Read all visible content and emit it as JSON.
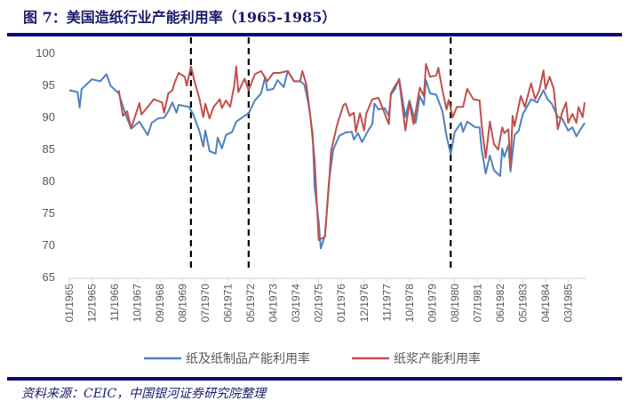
{
  "header": {
    "title": "图 7：美国造纸行业产能利用率（1965-1985）"
  },
  "footer": {
    "source": "资料来源：CEIC，中国银河证券研究院整理"
  },
  "chart_data": {
    "type": "line",
    "title": "",
    "xlabel": "",
    "ylabel": "",
    "ylim": [
      65,
      100
    ],
    "yticks": [
      65,
      70,
      75,
      80,
      85,
      90,
      95,
      100
    ],
    "xrange": [
      "1965-01",
      "1985-11"
    ],
    "xtick_labels": [
      "01/1965",
      "12/1965",
      "11/1966",
      "10/1967",
      "09/1968",
      "08/1969",
      "07/1970",
      "06/1971",
      "05/1972",
      "04/1973",
      "03/1974",
      "02/1975",
      "01/1976",
      "12/1976",
      "11/1977",
      "10/1978",
      "09/1979",
      "08/1980",
      "07/1981",
      "06/1982",
      "05/1983",
      "04/1984",
      "03/1985"
    ],
    "grid": false,
    "legend": "bottom",
    "vertical_markers": [
      "1969-12",
      "1972-04",
      "1980-06"
    ],
    "series": [
      {
        "name": "纸及纸制品产能利用率",
        "color": "#4f81bd",
        "points": [
          [
            "1965-01",
            94.1
          ],
          [
            "1965-05",
            93.8
          ],
          [
            "1965-06",
            91.4
          ],
          [
            "1965-07",
            94.3
          ],
          [
            "1965-12",
            95.8
          ],
          [
            "1966-04",
            95.5
          ],
          [
            "1966-07",
            96.6
          ],
          [
            "1966-09",
            94.8
          ],
          [
            "1967-01",
            93.6
          ],
          [
            "1967-04",
            90.6
          ],
          [
            "1967-07",
            88.1
          ],
          [
            "1967-11",
            89.2
          ],
          [
            "1968-03",
            87.1
          ],
          [
            "1968-05",
            89.0
          ],
          [
            "1968-08",
            89.7
          ],
          [
            "1968-11",
            89.8
          ],
          [
            "1969-01",
            90.8
          ],
          [
            "1969-03",
            92.2
          ],
          [
            "1969-05",
            90.6
          ],
          [
            "1969-06",
            91.8
          ],
          [
            "1969-11",
            91.5
          ],
          [
            "1970-01",
            90.4
          ],
          [
            "1970-04",
            87.8
          ],
          [
            "1970-06",
            85.3
          ],
          [
            "1970-07",
            87.8
          ],
          [
            "1970-09",
            84.6
          ],
          [
            "1970-12",
            84.2
          ],
          [
            "1971-01",
            86.7
          ],
          [
            "1971-03",
            85.0
          ],
          [
            "1971-05",
            87.1
          ],
          [
            "1971-08",
            87.6
          ],
          [
            "1971-10",
            89.2
          ],
          [
            "1972-02",
            90.1
          ],
          [
            "1972-04",
            90.5
          ],
          [
            "1972-07",
            92.5
          ],
          [
            "1972-10",
            93.6
          ],
          [
            "1972-12",
            96.2
          ],
          [
            "1973-01",
            94.1
          ],
          [
            "1973-04",
            94.3
          ],
          [
            "1973-06",
            95.7
          ],
          [
            "1973-09",
            94.6
          ],
          [
            "1973-11",
            97.1
          ],
          [
            "1974-02",
            95.5
          ],
          [
            "1974-05",
            95.5
          ],
          [
            "1974-07",
            95.0
          ],
          [
            "1974-09",
            92.0
          ],
          [
            "1974-11",
            87.4
          ],
          [
            "1974-12",
            79.0
          ],
          [
            "1975-02",
            73.5
          ],
          [
            "1975-03",
            69.4
          ],
          [
            "1975-05",
            71.4
          ],
          [
            "1975-07",
            80.0
          ],
          [
            "1975-09",
            84.8
          ],
          [
            "1975-12",
            87.0
          ],
          [
            "1976-03",
            87.5
          ],
          [
            "1976-06",
            87.6
          ],
          [
            "1976-07",
            86.4
          ],
          [
            "1976-09",
            87.4
          ],
          [
            "1976-11",
            86.0
          ],
          [
            "1977-02",
            87.8
          ],
          [
            "1977-04",
            88.8
          ],
          [
            "1977-05",
            92.0
          ],
          [
            "1977-07",
            91.1
          ],
          [
            "1977-10",
            91.3
          ],
          [
            "1977-12",
            90.1
          ],
          [
            "1978-01",
            93.4
          ],
          [
            "1978-03",
            94.3
          ],
          [
            "1978-05",
            95.9
          ],
          [
            "1978-08",
            89.9
          ],
          [
            "1978-10",
            92.5
          ],
          [
            "1979-01",
            89.0
          ],
          [
            "1979-03",
            93.2
          ],
          [
            "1979-05",
            91.8
          ],
          [
            "1979-06",
            95.7
          ],
          [
            "1979-08",
            93.6
          ],
          [
            "1979-11",
            93.4
          ],
          [
            "1980-02",
            90.8
          ],
          [
            "1980-04",
            86.9
          ],
          [
            "1980-06",
            84.1
          ],
          [
            "1980-08",
            87.6
          ],
          [
            "1980-11",
            89.0
          ],
          [
            "1980-12",
            87.6
          ],
          [
            "1981-02",
            89.2
          ],
          [
            "1981-06",
            88.3
          ],
          [
            "1981-08",
            88.3
          ],
          [
            "1981-09",
            84.9
          ],
          [
            "1981-11",
            81.1
          ],
          [
            "1982-01",
            83.9
          ],
          [
            "1982-03",
            81.6
          ],
          [
            "1982-06",
            80.7
          ],
          [
            "1982-07",
            85.0
          ],
          [
            "1982-08",
            83.7
          ],
          [
            "1982-10",
            85.5
          ],
          [
            "1982-11",
            81.4
          ],
          [
            "1983-01",
            87.1
          ],
          [
            "1983-03",
            87.8
          ],
          [
            "1983-05",
            90.4
          ],
          [
            "1983-07",
            91.5
          ],
          [
            "1983-09",
            92.7
          ],
          [
            "1983-12",
            92.2
          ],
          [
            "1984-03",
            94.1
          ],
          [
            "1984-05",
            92.7
          ],
          [
            "1984-07",
            92.0
          ],
          [
            "1984-10",
            89.9
          ],
          [
            "1984-12",
            89.7
          ],
          [
            "1985-03",
            87.8
          ],
          [
            "1985-05",
            88.3
          ],
          [
            "1985-07",
            86.9
          ],
          [
            "1985-09",
            88.0
          ],
          [
            "1985-11",
            89.0
          ]
        ]
      },
      {
        "name": "纸浆产能利用率",
        "color": "#c0504d",
        "points": [
          [
            "1967-01",
            94.1
          ],
          [
            "1967-03",
            90.1
          ],
          [
            "1967-05",
            90.8
          ],
          [
            "1967-07",
            88.2
          ],
          [
            "1967-09",
            90.1
          ],
          [
            "1967-11",
            92.1
          ],
          [
            "1967-12",
            90.3
          ],
          [
            "1968-03",
            91.5
          ],
          [
            "1968-06",
            92.7
          ],
          [
            "1968-10",
            92.2
          ],
          [
            "1968-11",
            90.6
          ],
          [
            "1969-01",
            93.6
          ],
          [
            "1969-03",
            94.1
          ],
          [
            "1969-04",
            95.2
          ],
          [
            "1969-06",
            96.8
          ],
          [
            "1969-09",
            96.2
          ],
          [
            "1969-10",
            94.8
          ],
          [
            "1969-12",
            97.8
          ],
          [
            "1970-02",
            95.2
          ],
          [
            "1970-04",
            92.9
          ],
          [
            "1970-06",
            89.9
          ],
          [
            "1970-07",
            92.0
          ],
          [
            "1970-09",
            89.7
          ],
          [
            "1970-11",
            91.5
          ],
          [
            "1971-02",
            92.7
          ],
          [
            "1971-03",
            91.3
          ],
          [
            "1971-05",
            92.5
          ],
          [
            "1971-07",
            91.5
          ],
          [
            "1971-09",
            94.8
          ],
          [
            "1971-10",
            97.8
          ],
          [
            "1971-11",
            93.8
          ],
          [
            "1972-02",
            95.9
          ],
          [
            "1972-04",
            94.1
          ],
          [
            "1972-07",
            96.6
          ],
          [
            "1972-10",
            97.1
          ],
          [
            "1973-01",
            95.5
          ],
          [
            "1973-04",
            96.8
          ],
          [
            "1973-07",
            96.8
          ],
          [
            "1973-11",
            97.1
          ],
          [
            "1974-02",
            95.5
          ],
          [
            "1974-05",
            95.5
          ],
          [
            "1974-06",
            97.1
          ],
          [
            "1974-08",
            95.0
          ],
          [
            "1974-10",
            89.9
          ],
          [
            "1974-12",
            83.2
          ],
          [
            "1975-02",
            70.7
          ],
          [
            "1975-05",
            71.2
          ],
          [
            "1975-07",
            79.5
          ],
          [
            "1975-08",
            84.6
          ],
          [
            "1975-11",
            88.8
          ],
          [
            "1976-02",
            91.8
          ],
          [
            "1976-03",
            92.0
          ],
          [
            "1976-05",
            90.1
          ],
          [
            "1976-07",
            90.6
          ],
          [
            "1976-08",
            87.6
          ],
          [
            "1976-10",
            90.5
          ],
          [
            "1976-12",
            87.8
          ],
          [
            "1977-01",
            90.4
          ],
          [
            "1977-04",
            92.7
          ],
          [
            "1977-07",
            92.9
          ],
          [
            "1977-09",
            91.3
          ],
          [
            "1977-12",
            88.8
          ],
          [
            "1978-01",
            93.6
          ],
          [
            "1978-03",
            94.8
          ],
          [
            "1978-05",
            95.7
          ],
          [
            "1978-08",
            87.8
          ],
          [
            "1978-10",
            92.2
          ],
          [
            "1978-12",
            88.8
          ],
          [
            "1979-03",
            94.5
          ],
          [
            "1979-05",
            93.2
          ],
          [
            "1979-06",
            98.2
          ],
          [
            "1979-08",
            96.2
          ],
          [
            "1979-11",
            96.4
          ],
          [
            "1979-12",
            97.6
          ],
          [
            "1980-02",
            94.1
          ],
          [
            "1980-04",
            91.1
          ],
          [
            "1980-05",
            92.6
          ],
          [
            "1980-07",
            89.9
          ],
          [
            "1980-09",
            91.5
          ],
          [
            "1980-12",
            91.5
          ],
          [
            "1981-02",
            94.3
          ],
          [
            "1981-05",
            92.7
          ],
          [
            "1981-08",
            92.5
          ],
          [
            "1981-09",
            88.8
          ],
          [
            "1981-11",
            83.5
          ],
          [
            "1982-01",
            89.2
          ],
          [
            "1982-03",
            85.7
          ],
          [
            "1982-05",
            84.8
          ],
          [
            "1982-07",
            88.3
          ],
          [
            "1982-08",
            87.4
          ],
          [
            "1982-10",
            88.0
          ],
          [
            "1982-11",
            82.1
          ],
          [
            "1982-12",
            90.1
          ],
          [
            "1983-01",
            88.5
          ],
          [
            "1983-04",
            93.2
          ],
          [
            "1983-06",
            91.5
          ],
          [
            "1983-09",
            95.2
          ],
          [
            "1983-11",
            92.7
          ],
          [
            "1984-01",
            94.1
          ],
          [
            "1984-03",
            97.2
          ],
          [
            "1984-04",
            94.3
          ],
          [
            "1984-06",
            96.2
          ],
          [
            "1984-08",
            94.3
          ],
          [
            "1984-10",
            88.0
          ],
          [
            "1984-12",
            90.6
          ],
          [
            "1985-02",
            92.2
          ],
          [
            "1985-03",
            89.0
          ],
          [
            "1985-05",
            90.4
          ],
          [
            "1985-07",
            89.0
          ],
          [
            "1985-08",
            91.5
          ],
          [
            "1985-10",
            89.9
          ],
          [
            "1985-11",
            92.2
          ]
        ]
      }
    ]
  }
}
